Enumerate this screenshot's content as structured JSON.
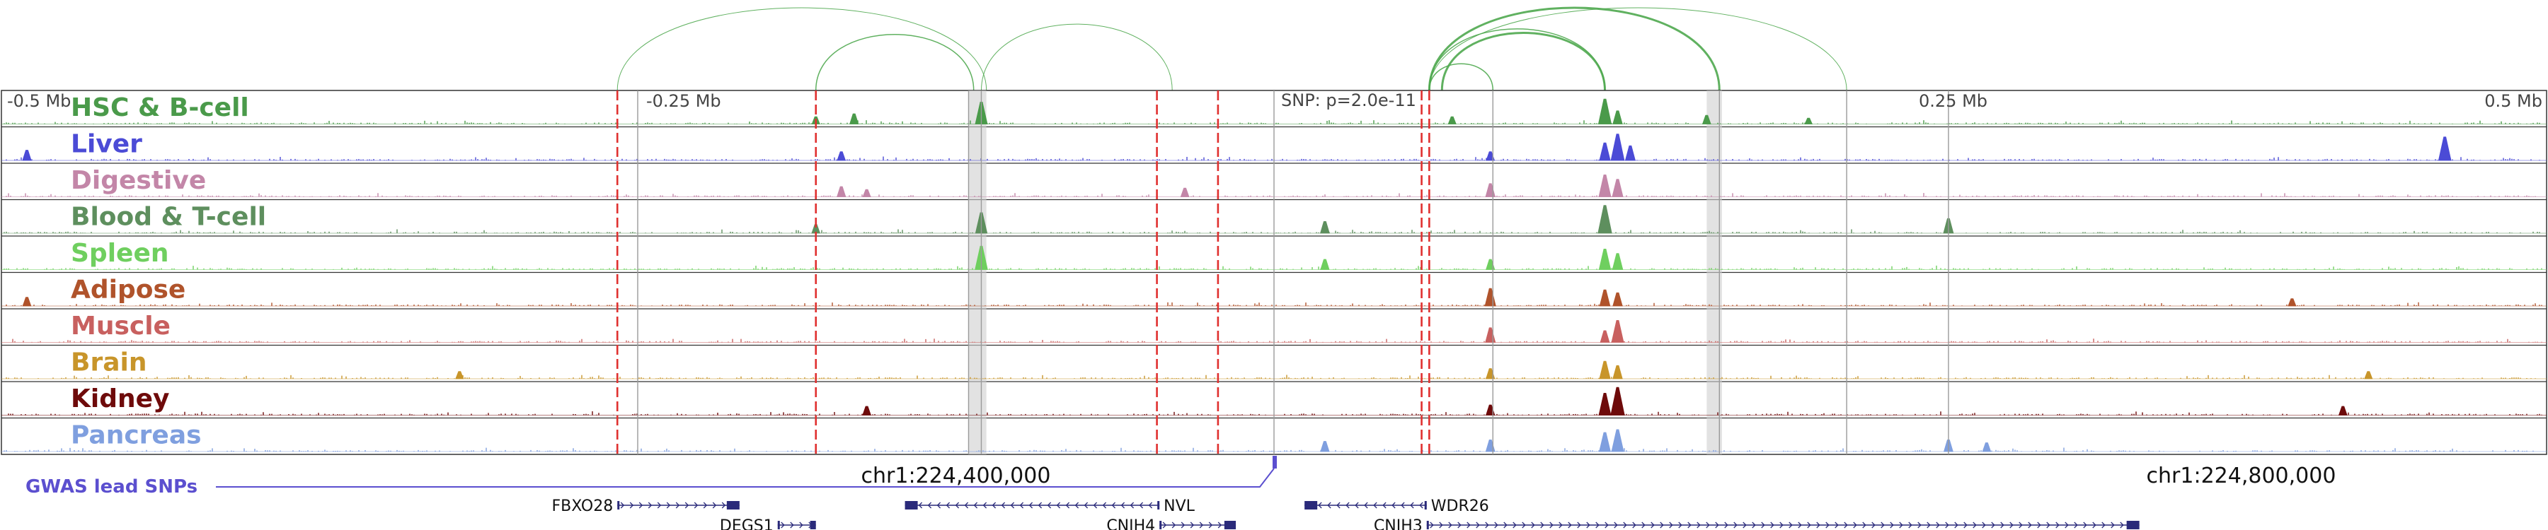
{
  "chart_data": {
    "type": "genome-browser",
    "region_window": {
      "start_mb": -0.5,
      "end_mb": 0.5
    },
    "axis_ticks": [
      {
        "value": -0.5,
        "label": "-0.5 Mb"
      },
      {
        "value": -0.25,
        "label": "-0.25 Mb"
      },
      {
        "value": 0.25,
        "label": "0.25 Mb"
      },
      {
        "value": 0.5,
        "label": "0.5 Mb"
      }
    ],
    "snp_label": "SNP: p=2.0e-11",
    "snp_position_mb": 0.0,
    "coordinate_labels": [
      {
        "pos_mb": -0.125,
        "text": "chr1:224,400,000"
      },
      {
        "pos_mb": 0.38,
        "text": "chr1:224,800,000"
      }
    ],
    "tracks": [
      {
        "name": "HSC & B-cell",
        "color": "#4a9a4a"
      },
      {
        "name": "Liver",
        "color": "#4b4bd6"
      },
      {
        "name": "Digestive",
        "color": "#c386a8"
      },
      {
        "name": "Blood & T-cell",
        "color": "#5e8f5e"
      },
      {
        "name": "Spleen",
        "color": "#6fcf5f"
      },
      {
        "name": "Adipose",
        "color": "#b0532b"
      },
      {
        "name": "Muscle",
        "color": "#c8605f"
      },
      {
        "name": "Brain",
        "color": "#c8952a"
      },
      {
        "name": "Kidney",
        "color": "#6e0a0a"
      },
      {
        "name": "Pancreas",
        "color": "#7f9fdf"
      }
    ],
    "peaks": [
      {
        "track": 0,
        "pos_mb": -0.18,
        "height": 0.25
      },
      {
        "track": 0,
        "pos_mb": -0.165,
        "height": 0.35
      },
      {
        "track": 0,
        "pos_mb": -0.115,
        "height": 0.75
      },
      {
        "track": 0,
        "pos_mb": 0.07,
        "height": 0.25
      },
      {
        "track": 0,
        "pos_mb": 0.13,
        "height": 0.85
      },
      {
        "track": 0,
        "pos_mb": 0.135,
        "height": 0.45
      },
      {
        "track": 0,
        "pos_mb": 0.17,
        "height": 0.3
      },
      {
        "track": 0,
        "pos_mb": 0.21,
        "height": 0.2
      },
      {
        "track": 1,
        "pos_mb": -0.49,
        "height": 0.35
      },
      {
        "track": 1,
        "pos_mb": -0.17,
        "height": 0.3
      },
      {
        "track": 1,
        "pos_mb": 0.085,
        "height": 0.3
      },
      {
        "track": 1,
        "pos_mb": 0.13,
        "height": 0.6
      },
      {
        "track": 1,
        "pos_mb": 0.135,
        "height": 0.9
      },
      {
        "track": 1,
        "pos_mb": 0.14,
        "height": 0.5
      },
      {
        "track": 1,
        "pos_mb": 0.46,
        "height": 0.8
      },
      {
        "track": 2,
        "pos_mb": -0.17,
        "height": 0.35
      },
      {
        "track": 2,
        "pos_mb": -0.16,
        "height": 0.25
      },
      {
        "track": 2,
        "pos_mb": -0.035,
        "height": 0.3
      },
      {
        "track": 2,
        "pos_mb": 0.085,
        "height": 0.45
      },
      {
        "track": 2,
        "pos_mb": 0.13,
        "height": 0.75
      },
      {
        "track": 2,
        "pos_mb": 0.135,
        "height": 0.6
      },
      {
        "track": 3,
        "pos_mb": -0.18,
        "height": 0.3
      },
      {
        "track": 3,
        "pos_mb": -0.115,
        "height": 0.7
      },
      {
        "track": 3,
        "pos_mb": 0.02,
        "height": 0.4
      },
      {
        "track": 3,
        "pos_mb": 0.13,
        "height": 0.95
      },
      {
        "track": 3,
        "pos_mb": 0.265,
        "height": 0.5
      },
      {
        "track": 4,
        "pos_mb": -0.115,
        "height": 0.8
      },
      {
        "track": 4,
        "pos_mb": 0.02,
        "height": 0.35
      },
      {
        "track": 4,
        "pos_mb": 0.085,
        "height": 0.35
      },
      {
        "track": 4,
        "pos_mb": 0.13,
        "height": 0.7
      },
      {
        "track": 4,
        "pos_mb": 0.135,
        "height": 0.55
      },
      {
        "track": 5,
        "pos_mb": -0.49,
        "height": 0.3
      },
      {
        "track": 5,
        "pos_mb": 0.085,
        "height": 0.6
      },
      {
        "track": 5,
        "pos_mb": 0.13,
        "height": 0.55
      },
      {
        "track": 5,
        "pos_mb": 0.135,
        "height": 0.45
      },
      {
        "track": 5,
        "pos_mb": 0.4,
        "height": 0.25
      },
      {
        "track": 6,
        "pos_mb": 0.085,
        "height": 0.5
      },
      {
        "track": 6,
        "pos_mb": 0.13,
        "height": 0.4
      },
      {
        "track": 6,
        "pos_mb": 0.135,
        "height": 0.75
      },
      {
        "track": 7,
        "pos_mb": -0.32,
        "height": 0.25
      },
      {
        "track": 7,
        "pos_mb": 0.085,
        "height": 0.35
      },
      {
        "track": 7,
        "pos_mb": 0.13,
        "height": 0.6
      },
      {
        "track": 7,
        "pos_mb": 0.135,
        "height": 0.45
      },
      {
        "track": 7,
        "pos_mb": 0.43,
        "height": 0.25
      },
      {
        "track": 8,
        "pos_mb": -0.16,
        "height": 0.3
      },
      {
        "track": 8,
        "pos_mb": 0.085,
        "height": 0.35
      },
      {
        "track": 8,
        "pos_mb": 0.13,
        "height": 0.75
      },
      {
        "track": 8,
        "pos_mb": 0.135,
        "height": 0.95
      },
      {
        "track": 8,
        "pos_mb": 0.42,
        "height": 0.3
      },
      {
        "track": 9,
        "pos_mb": 0.02,
        "height": 0.35
      },
      {
        "track": 9,
        "pos_mb": 0.085,
        "height": 0.4
      },
      {
        "track": 9,
        "pos_mb": 0.13,
        "height": 0.65
      },
      {
        "track": 9,
        "pos_mb": 0.135,
        "height": 0.75
      },
      {
        "track": 9,
        "pos_mb": 0.265,
        "height": 0.4
      },
      {
        "track": 9,
        "pos_mb": 0.28,
        "height": 0.3
      }
    ],
    "red_dashed_lines_mb": [
      -0.258,
      -0.18,
      -0.046,
      -0.022,
      0.058,
      0.061
    ],
    "gray_lines_mb": [
      -0.25,
      -0.12,
      -0.115,
      0.0,
      0.086,
      0.175,
      0.225,
      0.265
    ],
    "gray_bands_mb": [
      [
        -0.12,
        -0.113
      ],
      [
        0.17,
        0.176
      ]
    ],
    "loops": [
      {
        "start_mb": -0.258,
        "end_mb": -0.113,
        "weight": 1
      },
      {
        "start_mb": -0.18,
        "end_mb": -0.118,
        "weight": 1.5
      },
      {
        "start_mb": -0.115,
        "end_mb": -0.04,
        "weight": 1
      },
      {
        "start_mb": 0.061,
        "end_mb": 0.086,
        "weight": 1.5
      },
      {
        "start_mb": 0.061,
        "end_mb": 0.13,
        "weight": 1.5
      },
      {
        "start_mb": 0.061,
        "end_mb": 0.175,
        "weight": 3
      },
      {
        "start_mb": 0.061,
        "end_mb": 0.225,
        "weight": 1
      },
      {
        "start_mb": 0.066,
        "end_mb": 0.13,
        "weight": 3
      }
    ],
    "gwas_label": "GWAS lead SNPs",
    "gwas_color": "#5b4fcf",
    "genes": [
      {
        "name": "FBXO28",
        "start_mb": -0.258,
        "end_mb": -0.21,
        "row": 0,
        "strand": "+",
        "label_side": "left"
      },
      {
        "name": "DEGS1",
        "start_mb": -0.195,
        "end_mb": -0.18,
        "row": 1,
        "strand": "+",
        "label_side": "left"
      },
      {
        "name": "NVL",
        "start_mb": -0.145,
        "end_mb": -0.045,
        "row": 0,
        "strand": "-",
        "label_side": "right"
      },
      {
        "name": "CNIH4",
        "start_mb": -0.045,
        "end_mb": -0.015,
        "row": 1,
        "strand": "+",
        "label_side": "left"
      },
      {
        "name": "WDR26",
        "start_mb": 0.012,
        "end_mb": 0.06,
        "row": 0,
        "strand": "-",
        "label_side": "right"
      },
      {
        "name": "CNIH3",
        "start_mb": 0.06,
        "end_mb": 0.34,
        "row": 1,
        "strand": "+",
        "label_side": "left"
      }
    ],
    "gene_color": "#2a2a7a"
  }
}
